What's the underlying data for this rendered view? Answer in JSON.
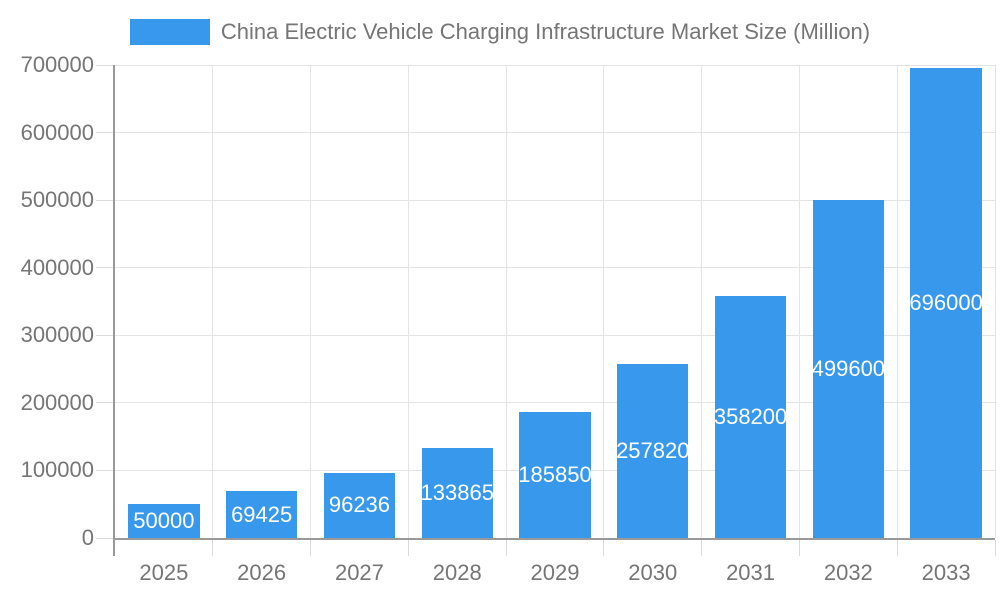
{
  "legend": {
    "position": "top",
    "series_label": "China Electric Vehicle Charging Infrastructure Market Size (Million)"
  },
  "chart_data": {
    "type": "bar",
    "title": "China Electric Vehicle Charging Infrastructure Market Size (Million)",
    "xlabel": "",
    "ylabel": "",
    "categories": [
      "2025",
      "2026",
      "2027",
      "2028",
      "2029",
      "2030",
      "2031",
      "2032",
      "2033"
    ],
    "values": [
      50000,
      69425,
      96236,
      133865,
      185850,
      257820,
      358200,
      499600,
      696000
    ],
    "bar_value_labels": [
      "50000",
      "69425",
      "96236",
      "133865",
      "185850",
      "257820",
      "358200",
      "499600",
      "696000"
    ],
    "ylim": [
      0,
      700000
    ],
    "yticks": [
      0,
      100000,
      200000,
      300000,
      400000,
      500000,
      600000,
      700000
    ],
    "ytick_labels": [
      "0",
      "100000",
      "200000",
      "300000",
      "400000",
      "500000",
      "600000",
      "700000"
    ],
    "grid": true,
    "legend_position": "top"
  },
  "colors": {
    "bar": "#3899EC",
    "bar_label_text": "#FFFFFF",
    "axis_line": "#999999",
    "gridline": "#E4E4E4",
    "tick": "#DADADA",
    "axis_text": "#757575",
    "title_text": "#757575",
    "background": "#FFFFFF"
  }
}
